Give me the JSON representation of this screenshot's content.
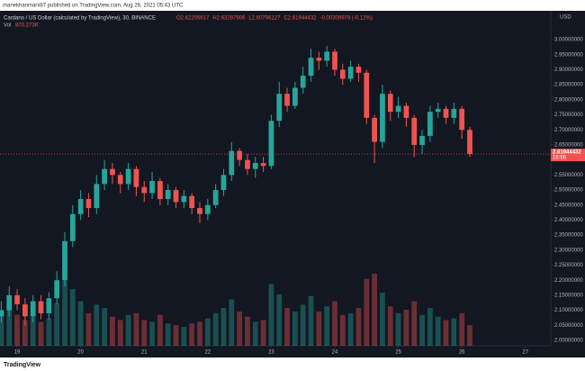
{
  "published": "manekhanmarx87 published on TradingView.com, Aug 26, 2021 05:43 UTC",
  "footer_logo": "TradingView",
  "chart_data": {
    "type": "candlestick",
    "title": "Cardano / US Dollar (calculated by TradingView), 30, BINANCE",
    "ohlc_labels": [
      "O2.62205617",
      "H2.63287906",
      "L2.60796127",
      "C2.61944432",
      "-0.00309979 (-0.12%)"
    ],
    "volume_label": "Vol",
    "volume_value_label": "803.273K",
    "currency": "USD",
    "last_price": 2.61944432,
    "last_price_time": "16:56",
    "up_color": "#26a69a",
    "down_color": "#ef5350",
    "grid": false,
    "x": [
      18.75,
      18.875,
      19,
      19.125,
      19.25,
      19.375,
      19.5,
      19.625,
      19.75,
      19.875,
      20,
      20.125,
      20.25,
      20.375,
      20.5,
      20.625,
      20.75,
      20.875,
      21,
      21.125,
      21.25,
      21.375,
      21.5,
      21.625,
      21.75,
      21.875,
      22,
      22.125,
      22.25,
      22.375,
      22.5,
      22.625,
      22.75,
      22.875,
      23,
      23.125,
      23.25,
      23.375,
      23.5,
      23.625,
      23.75,
      23.875,
      24,
      24.125,
      24.25,
      24.375,
      24.5,
      24.625,
      24.75,
      24.875,
      25,
      25.125,
      25.25,
      25.375,
      25.5,
      25.625,
      25.75,
      25.875,
      26,
      26.125
    ],
    "open": [
      2.08,
      2.1,
      2.15,
      2.12,
      2.08,
      2.13,
      2.09,
      2.14,
      2.2,
      2.33,
      2.42,
      2.47,
      2.44,
      2.52,
      2.57,
      2.55,
      2.52,
      2.57,
      2.51,
      2.49,
      2.53,
      2.47,
      2.5,
      2.46,
      2.48,
      2.44,
      2.42,
      2.45,
      2.5,
      2.55,
      2.63,
      2.6,
      2.57,
      2.59,
      2.58,
      2.73,
      2.82,
      2.78,
      2.84,
      2.88,
      2.94,
      2.93,
      2.96,
      2.9,
      2.87,
      2.91,
      2.89,
      2.74,
      2.66,
      2.82,
      2.76,
      2.78,
      2.74,
      2.65,
      2.68,
      2.76,
      2.77,
      2.74,
      2.77,
      2.7
    ],
    "high": [
      2.13,
      2.18,
      2.17,
      2.14,
      2.15,
      2.15,
      2.16,
      2.23,
      2.36,
      2.45,
      2.5,
      2.49,
      2.55,
      2.6,
      2.59,
      2.56,
      2.59,
      2.58,
      2.53,
      2.56,
      2.54,
      2.52,
      2.51,
      2.5,
      2.49,
      2.46,
      2.47,
      2.52,
      2.57,
      2.66,
      2.64,
      2.62,
      2.61,
      2.61,
      2.75,
      2.86,
      2.84,
      2.86,
      2.91,
      2.97,
      2.96,
      2.98,
      2.97,
      2.92,
      2.93,
      2.92,
      2.9,
      2.75,
      2.85,
      2.83,
      2.81,
      2.79,
      2.75,
      2.7,
      2.78,
      2.79,
      2.78,
      2.79,
      2.78,
      2.71
    ],
    "low": [
      2.06,
      2.08,
      2.1,
      2.05,
      2.06,
      2.07,
      2.07,
      2.12,
      2.18,
      2.31,
      2.4,
      2.41,
      2.42,
      2.5,
      2.52,
      2.49,
      2.5,
      2.48,
      2.46,
      2.47,
      2.45,
      2.45,
      2.44,
      2.44,
      2.42,
      2.39,
      2.4,
      2.44,
      2.48,
      2.53,
      2.58,
      2.55,
      2.54,
      2.56,
      2.57,
      2.71,
      2.76,
      2.77,
      2.82,
      2.86,
      2.9,
      2.91,
      2.88,
      2.85,
      2.86,
      2.86,
      2.72,
      2.59,
      2.64,
      2.73,
      2.74,
      2.71,
      2.61,
      2.62,
      2.66,
      2.74,
      2.72,
      2.72,
      2.67,
      2.61
    ],
    "close": [
      2.1,
      2.15,
      2.12,
      2.08,
      2.13,
      2.09,
      2.14,
      2.2,
      2.33,
      2.42,
      2.47,
      2.44,
      2.52,
      2.57,
      2.55,
      2.52,
      2.57,
      2.51,
      2.49,
      2.53,
      2.47,
      2.5,
      2.46,
      2.48,
      2.44,
      2.42,
      2.45,
      2.5,
      2.55,
      2.63,
      2.6,
      2.57,
      2.59,
      2.58,
      2.73,
      2.82,
      2.78,
      2.84,
      2.88,
      2.94,
      2.93,
      2.96,
      2.9,
      2.87,
      2.91,
      2.89,
      2.74,
      2.66,
      2.82,
      2.76,
      2.78,
      2.74,
      2.65,
      2.68,
      2.76,
      2.77,
      2.74,
      2.77,
      2.7,
      2.62
    ],
    "volume": [
      2100,
      2600,
      1800,
      1500,
      1700,
      1400,
      1600,
      2500,
      3800,
      3300,
      2600,
      1900,
      2400,
      2200,
      1700,
      1500,
      1800,
      1900,
      1500,
      1400,
      1800,
      1300,
      1200,
      1100,
      1300,
      1400,
      1600,
      1900,
      2200,
      2700,
      2000,
      1700,
      1400,
      1500,
      3600,
      3000,
      2200,
      2000,
      2400,
      2900,
      2000,
      2300,
      2600,
      1800,
      1900,
      2200,
      3900,
      4200,
      3100,
      2300,
      1900,
      2100,
      2600,
      1800,
      2200,
      1700,
      1500,
      1600,
      1900,
      1200
    ],
    "xlim": [
      18.73,
      27.4
    ],
    "xticks": [
      19,
      20,
      21,
      22,
      23,
      24,
      25,
      26,
      27
    ],
    "ylim": [
      1.982,
      3.096
    ],
    "yticks": [
      {
        "value": 2.0,
        "label": "2.00000000"
      },
      {
        "value": 2.05,
        "label": "2.05000000"
      },
      {
        "value": 2.1,
        "label": "2.10000000"
      },
      {
        "value": 2.15,
        "label": "2.15000000"
      },
      {
        "value": 2.2,
        "label": "2.20000000"
      },
      {
        "value": 2.25,
        "label": "2.25000000"
      },
      {
        "value": 2.3,
        "label": "2.30000000"
      },
      {
        "value": 2.35,
        "label": "2.35000000"
      },
      {
        "value": 2.4,
        "label": "2.40000000"
      },
      {
        "value": 2.45,
        "label": "2.45000000"
      },
      {
        "value": 2.5,
        "label": "2.50000000"
      },
      {
        "value": 2.55,
        "label": "2.55000000"
      },
      {
        "value": 2.6,
        "label": "2.60000000"
      },
      {
        "value": 2.65,
        "label": "2.65000000"
      },
      {
        "value": 2.7,
        "label": "2.70000000"
      },
      {
        "value": 2.75,
        "label": "2.75000000"
      },
      {
        "value": 2.8,
        "label": "2.80000000"
      },
      {
        "value": 2.85,
        "label": "2.85000000"
      },
      {
        "value": 2.9,
        "label": "2.90000000"
      },
      {
        "value": 2.95,
        "label": "2.95000000"
      },
      {
        "value": 3.0,
        "label": "3.00000000"
      }
    ]
  }
}
